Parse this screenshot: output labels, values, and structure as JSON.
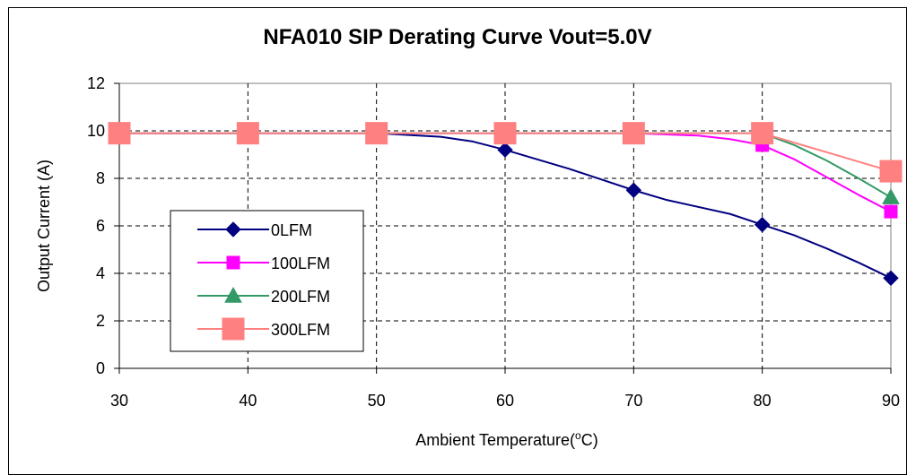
{
  "chart_data": {
    "type": "line",
    "title": "NFA010 SIP Derating Curve Vout=5.0V",
    "xlabel": "Ambient Temperature(",
    "xlabel_sup": "o",
    "xlabel_unit": "C)",
    "ylabel": "Output Current (A)",
    "xlim": [
      30,
      90
    ],
    "ylim": [
      0,
      12
    ],
    "x_ticks": [
      "30",
      "40",
      "50",
      "60",
      "70",
      "80",
      "90"
    ],
    "y_ticks": [
      "0",
      "2",
      "4",
      "6",
      "8",
      "10",
      "12"
    ],
    "grid": true,
    "legend_position": "left",
    "series": [
      {
        "name": "0LFM",
        "color": "#000080",
        "marker": "diamond",
        "x": [
          30,
          40,
          50,
          60,
          70,
          80,
          90
        ],
        "y": [
          9.9,
          9.9,
          9.9,
          9.2,
          7.5,
          6.05,
          3.8
        ],
        "curve": [
          [
            30,
            9.9
          ],
          [
            50,
            9.9
          ],
          [
            55,
            9.75
          ],
          [
            57.5,
            9.55
          ],
          [
            60,
            9.2
          ],
          [
            62.5,
            8.8
          ],
          [
            65,
            8.4
          ],
          [
            67.5,
            7.95
          ],
          [
            70,
            7.5
          ],
          [
            72.5,
            7.1
          ],
          [
            75,
            6.8
          ],
          [
            77.5,
            6.5
          ],
          [
            80,
            6.05
          ],
          [
            82.5,
            5.6
          ],
          [
            85,
            5.05
          ],
          [
            87.5,
            4.45
          ],
          [
            90,
            3.8
          ]
        ]
      },
      {
        "name": "100LFM",
        "color": "#ff00ff",
        "marker": "square",
        "x": [
          30,
          40,
          50,
          60,
          70,
          80,
          90
        ],
        "y": [
          9.9,
          9.9,
          9.9,
          9.9,
          9.9,
          9.4,
          6.6
        ],
        "curve": [
          [
            30,
            9.9
          ],
          [
            70,
            9.9
          ],
          [
            72.5,
            9.85
          ],
          [
            75,
            9.8
          ],
          [
            77.5,
            9.65
          ],
          [
            80,
            9.4
          ],
          [
            82.5,
            8.8
          ],
          [
            85,
            8.05
          ],
          [
            87.5,
            7.3
          ],
          [
            90,
            6.6
          ]
        ]
      },
      {
        "name": "200LFM",
        "color": "#339966",
        "marker": "triangle",
        "x": [
          30,
          40,
          50,
          60,
          70,
          80,
          90
        ],
        "y": [
          9.9,
          9.9,
          9.9,
          9.9,
          9.9,
          9.9,
          7.2
        ],
        "curve": [
          [
            30,
            9.9
          ],
          [
            80,
            9.9
          ],
          [
            82.5,
            9.4
          ],
          [
            85,
            8.75
          ],
          [
            87.5,
            8.0
          ],
          [
            90,
            7.2
          ]
        ]
      },
      {
        "name": "300LFM",
        "color": "#ff8080",
        "marker": "square-large",
        "x": [
          30,
          40,
          50,
          60,
          70,
          80,
          90
        ],
        "y": [
          9.9,
          9.9,
          9.9,
          9.9,
          9.9,
          9.9,
          8.3
        ],
        "curve": [
          [
            30,
            9.9
          ],
          [
            80,
            9.9
          ],
          [
            85,
            9.1
          ],
          [
            90,
            8.3
          ]
        ]
      }
    ]
  }
}
